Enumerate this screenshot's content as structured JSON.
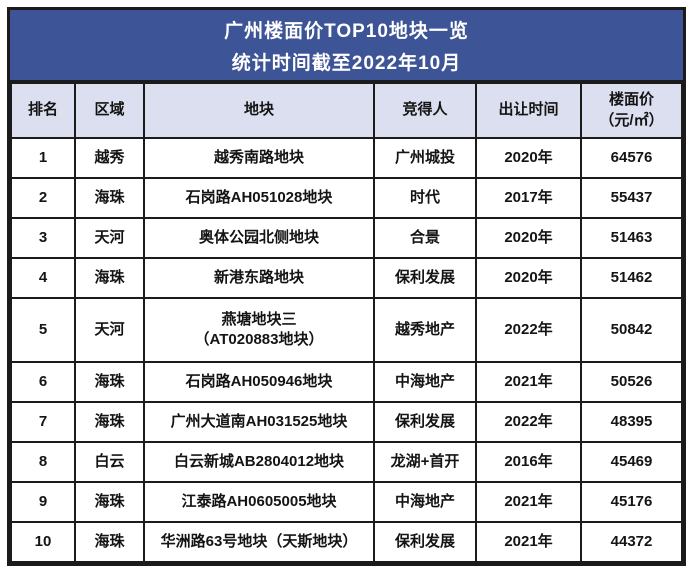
{
  "title": {
    "line1": "广州楼面价TOP10地块一览",
    "line2": "统计时间截至2022年10月"
  },
  "colors": {
    "title_bg": "#3d5496",
    "title_text": "#ffffff",
    "header_bg": "#dbdfef",
    "row_bg": "#ffffff",
    "border": "#1b1b1b",
    "text": "#141414"
  },
  "chart_data": {
    "type": "table",
    "title": "广州楼面价TOP10地块一览",
    "subtitle": "统计时间截至2022年10月",
    "columns": [
      {
        "key": "rank",
        "label": "排名"
      },
      {
        "key": "district",
        "label": "区域"
      },
      {
        "key": "parcel",
        "label": "地块"
      },
      {
        "key": "winner",
        "label": "竞得人"
      },
      {
        "key": "year",
        "label": "出让时间"
      },
      {
        "key": "price",
        "label": "楼面价",
        "label_line2": "（元/㎡）"
      }
    ],
    "rows": [
      {
        "rank": "1",
        "district": "越秀",
        "parcel": [
          "越秀南路地块"
        ],
        "winner": "广州城投",
        "year": "2020年",
        "price": "64576"
      },
      {
        "rank": "2",
        "district": "海珠",
        "parcel": [
          "石岗路AH051028地块"
        ],
        "winner": "时代",
        "year": "2017年",
        "price": "55437"
      },
      {
        "rank": "3",
        "district": "天河",
        "parcel": [
          "奥体公园北侧地块"
        ],
        "winner": "合景",
        "year": "2020年",
        "price": "51463"
      },
      {
        "rank": "4",
        "district": "海珠",
        "parcel": [
          "新港东路地块"
        ],
        "winner": "保利发展",
        "year": "2020年",
        "price": "51462"
      },
      {
        "rank": "5",
        "district": "天河",
        "parcel": [
          "燕塘地块三",
          "（AT020883地块）"
        ],
        "winner": "越秀地产",
        "year": "2022年",
        "price": "50842"
      },
      {
        "rank": "6",
        "district": "海珠",
        "parcel": [
          "石岗路AH050946地块"
        ],
        "winner": "中海地产",
        "year": "2021年",
        "price": "50526"
      },
      {
        "rank": "7",
        "district": "海珠",
        "parcel": [
          "广州大道南AH031525地块"
        ],
        "winner": "保利发展",
        "year": "2022年",
        "price": "48395"
      },
      {
        "rank": "8",
        "district": "白云",
        "parcel": [
          "白云新城AB2804012地块"
        ],
        "winner": "龙湖+首开",
        "year": "2016年",
        "price": "45469"
      },
      {
        "rank": "9",
        "district": "海珠",
        "parcel": [
          "江泰路AH0605005地块"
        ],
        "winner": "中海地产",
        "year": "2021年",
        "price": "45176"
      },
      {
        "rank": "10",
        "district": "海珠",
        "parcel": [
          "华洲路63号地块（天斯地块）"
        ],
        "winner": "保利发展",
        "year": "2021年",
        "price": "44372"
      }
    ]
  }
}
